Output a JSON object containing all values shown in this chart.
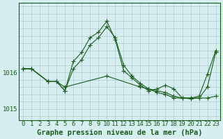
{
  "title": "Graphe pression niveau de la mer (hPa)",
  "background_color": "#d6eef0",
  "grid_color": "#b0ccd0",
  "line_color": "#1a5c1a",
  "series1_x": [
    0,
    1,
    3,
    4,
    5,
    6,
    7,
    8,
    9,
    10,
    11,
    12,
    13,
    14,
    15,
    16,
    17,
    18,
    19,
    20,
    21,
    22,
    23
  ],
  "series1_y": [
    1016.1,
    1016.1,
    1015.75,
    1015.75,
    1015.5,
    1016.3,
    1016.55,
    1016.95,
    1017.1,
    1017.4,
    1016.9,
    1016.05,
    1015.85,
    1015.65,
    1015.5,
    1015.55,
    1015.65,
    1015.55,
    1015.3,
    1015.3,
    1015.35,
    1015.95,
    1016.6
  ],
  "series2_x": [
    0,
    1,
    3,
    4,
    5,
    6,
    7,
    8,
    9,
    10,
    11,
    12,
    13,
    14,
    15,
    16,
    17,
    18,
    19,
    20,
    21,
    22,
    23
  ],
  "series2_y": [
    1016.1,
    1016.1,
    1015.75,
    1015.75,
    1015.5,
    1016.1,
    1016.35,
    1016.75,
    1016.95,
    1017.25,
    1016.95,
    1016.2,
    1015.9,
    1015.7,
    1015.55,
    1015.45,
    1015.4,
    1015.3,
    1015.3,
    1015.28,
    1015.3,
    1015.6,
    1016.55
  ],
  "series3_x": [
    0,
    1,
    3,
    4,
    5,
    10,
    14,
    15,
    16,
    17,
    18,
    19,
    20,
    21,
    22,
    23
  ],
  "series3_y": [
    1016.1,
    1016.1,
    1015.75,
    1015.75,
    1015.6,
    1015.9,
    1015.6,
    1015.55,
    1015.5,
    1015.45,
    1015.35,
    1015.3,
    1015.3,
    1015.3,
    1015.3,
    1015.35
  ],
  "yticks": [
    1015.0,
    1016.0
  ],
  "ylim": [
    1014.7,
    1017.9
  ],
  "xlim": [
    -0.5,
    23.5
  ],
  "xticks": [
    0,
    1,
    2,
    3,
    4,
    5,
    6,
    7,
    8,
    9,
    10,
    11,
    12,
    13,
    14,
    15,
    16,
    17,
    18,
    19,
    20,
    21,
    22,
    23
  ],
  "tick_fontsize": 6.5,
  "label_fontsize": 7.5
}
